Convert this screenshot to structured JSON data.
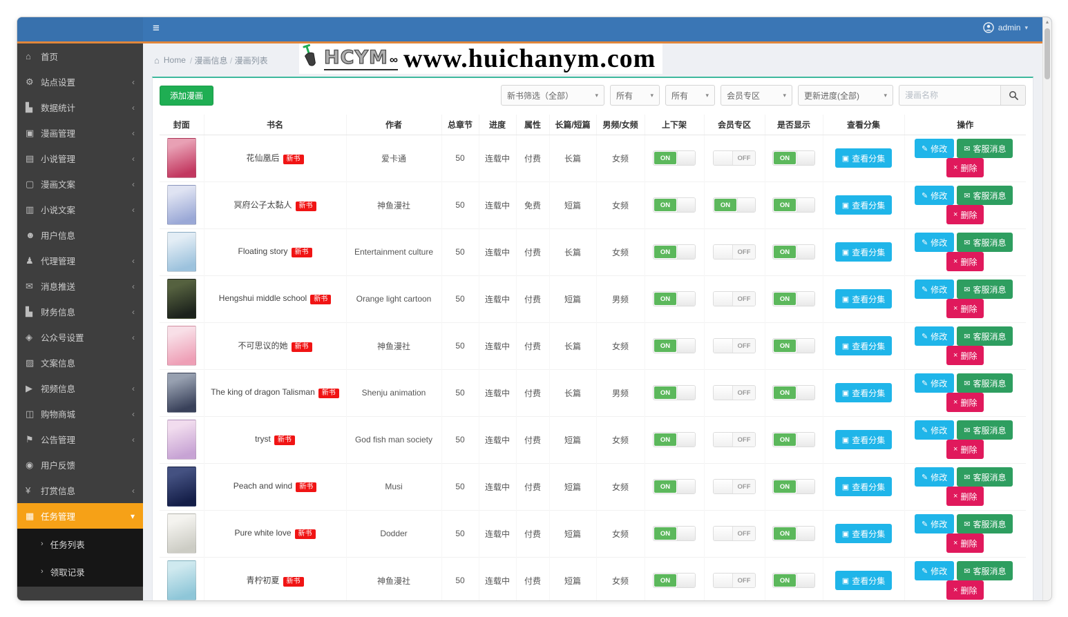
{
  "header": {
    "hamburger": "≡",
    "user_label": "admin",
    "caret": "▾"
  },
  "watermark": {
    "brand": "HCYM",
    "dots": "∞",
    "url": "www.huichanym.com"
  },
  "breadcrumb": {
    "home_icon": "⌂",
    "home": "Home",
    "separator": "/",
    "path": [
      "漫画信息",
      "漫画列表"
    ]
  },
  "sidebar": {
    "items": [
      {
        "label": "首页",
        "icon": "home-icon",
        "glyph": "⌂",
        "expandable": false
      },
      {
        "label": "站点设置",
        "icon": "site-settings-icon",
        "glyph": "⚙",
        "expandable": true
      },
      {
        "label": "数据统计",
        "icon": "statistics-icon",
        "glyph": "▙",
        "expandable": true
      },
      {
        "label": "漫画管理",
        "icon": "comic-manage-icon",
        "glyph": "▣",
        "expandable": true
      },
      {
        "label": "小说管理",
        "icon": "novel-manage-icon",
        "glyph": "▤",
        "expandable": true
      },
      {
        "label": "漫画文案",
        "icon": "comic-copy-icon",
        "glyph": "▢",
        "expandable": true
      },
      {
        "label": "小说文案",
        "icon": "novel-copy-icon",
        "glyph": "▥",
        "expandable": true
      },
      {
        "label": "用户信息",
        "icon": "user-info-icon",
        "glyph": "☻",
        "expandable": false
      },
      {
        "label": "代理管理",
        "icon": "agent-manage-icon",
        "glyph": "♟",
        "expandable": true
      },
      {
        "label": "消息推送",
        "icon": "message-push-icon",
        "glyph": "✉",
        "expandable": true
      },
      {
        "label": "财务信息",
        "icon": "finance-info-icon",
        "glyph": "▙",
        "expandable": true
      },
      {
        "label": "公众号设置",
        "icon": "official-account-icon",
        "glyph": "◈",
        "expandable": true
      },
      {
        "label": "文案信息",
        "icon": "copy-info-icon",
        "glyph": "▨",
        "expandable": false
      },
      {
        "label": "视频信息",
        "icon": "video-info-icon",
        "glyph": "▶",
        "expandable": true
      },
      {
        "label": "购物商城",
        "icon": "shop-mall-icon",
        "glyph": "◫",
        "expandable": true
      },
      {
        "label": "公告管理",
        "icon": "notice-manage-icon",
        "glyph": "⚑",
        "expandable": true
      },
      {
        "label": "用户反馈",
        "icon": "user-feedback-icon",
        "glyph": "◉",
        "expandable": false
      },
      {
        "label": "打赏信息",
        "icon": "reward-info-icon",
        "glyph": "¥",
        "expandable": true
      },
      {
        "label": "任务管理",
        "icon": "task-manage-icon",
        "glyph": "▦",
        "expandable": true,
        "active": true,
        "expanded": true,
        "children": [
          {
            "label": "任务列表"
          },
          {
            "label": "领取记录"
          }
        ]
      }
    ],
    "collapse_arrow": "‹",
    "expand_arrow": "▾",
    "sub_arrow": "›"
  },
  "toolbar": {
    "add_button": "添加漫画",
    "filters": [
      {
        "label": "新书筛选（全部）"
      },
      {
        "label": "所有"
      },
      {
        "label": "所有"
      },
      {
        "label": "会员专区"
      },
      {
        "label": "更新进度(全部)"
      }
    ],
    "filter_caret": "▾",
    "search_placeholder": "漫画名称"
  },
  "table": {
    "headers": [
      "封面",
      "书名",
      "作者",
      "总章节",
      "进度",
      "属性",
      "长篇/短篇",
      "男频/女频",
      "上下架",
      "会员专区",
      "是否显示",
      "查看分集",
      "操作"
    ],
    "badge_new": "新书",
    "toggle_on": "ON",
    "toggle_off": "OFF",
    "episodes_button": "查看分集",
    "actions": {
      "edit": "修改",
      "message": "客服消息",
      "delete": "删除"
    },
    "rows": [
      {
        "title": "花仙凰后",
        "new": true,
        "author": "爱卡通",
        "chapters": "50",
        "progress": "连载中",
        "attribute": "付费",
        "length": "长篇",
        "audience": "女频",
        "on_sale": "on",
        "vip": "off",
        "visible": "on",
        "cover_colors": [
          "#e8a0b4",
          "#c2375f"
        ]
      },
      {
        "title": "冥府公子太黏人",
        "new": true,
        "author": "神鱼漫社",
        "chapters": "50",
        "progress": "连载中",
        "attribute": "免费",
        "length": "短篇",
        "audience": "女频",
        "on_sale": "on",
        "vip": "on",
        "visible": "on",
        "cover_colors": [
          "#dfe3f2",
          "#9aa8d6"
        ]
      },
      {
        "title": "Floating story",
        "new": true,
        "author": "Entertainment culture",
        "chapters": "50",
        "progress": "连载中",
        "attribute": "付费",
        "length": "长篇",
        "audience": "女频",
        "on_sale": "on",
        "vip": "off",
        "visible": "on",
        "cover_colors": [
          "#e3edf5",
          "#9cc2dd"
        ]
      },
      {
        "title": "Hengshui middle school",
        "new": true,
        "author": "Orange light cartoon",
        "chapters": "50",
        "progress": "连载中",
        "attribute": "付费",
        "length": "短篇",
        "audience": "男频",
        "on_sale": "on",
        "vip": "off",
        "visible": "on",
        "cover_colors": [
          "#55613f",
          "#1c221c"
        ]
      },
      {
        "title": "不可思议的她",
        "new": true,
        "author": "神鱼漫社",
        "chapters": "50",
        "progress": "连载中",
        "attribute": "付费",
        "length": "长篇",
        "audience": "女频",
        "on_sale": "on",
        "vip": "off",
        "visible": "on",
        "cover_colors": [
          "#f8dfe7",
          "#ee9fb6"
        ]
      },
      {
        "title": "The king of dragon Talisman",
        "new": true,
        "author": "Shenju animation",
        "chapters": "50",
        "progress": "连载中",
        "attribute": "付费",
        "length": "长篇",
        "audience": "男频",
        "on_sale": "on",
        "vip": "off",
        "visible": "on",
        "cover_colors": [
          "#97a0b0",
          "#39415a"
        ]
      },
      {
        "title": "tryst",
        "new": true,
        "author": "God fish man society",
        "chapters": "50",
        "progress": "连载中",
        "attribute": "付费",
        "length": "短篇",
        "audience": "女频",
        "on_sale": "on",
        "vip": "off",
        "visible": "on",
        "cover_colors": [
          "#f1dcee",
          "#c7a3d4"
        ]
      },
      {
        "title": "Peach and wind",
        "new": true,
        "author": "Musi",
        "chapters": "50",
        "progress": "连载中",
        "attribute": "付费",
        "length": "短篇",
        "audience": "女频",
        "on_sale": "on",
        "vip": "off",
        "visible": "on",
        "cover_colors": [
          "#445181",
          "#141e48"
        ]
      },
      {
        "title": "Pure white love",
        "new": true,
        "author": "Dodder",
        "chapters": "50",
        "progress": "连载中",
        "attribute": "付费",
        "length": "短篇",
        "audience": "女频",
        "on_sale": "on",
        "vip": "off",
        "visible": "on",
        "cover_colors": [
          "#f4f3ef",
          "#ccccc4"
        ]
      },
      {
        "title": "青柠初夏",
        "new": true,
        "author": "神鱼漫社",
        "chapters": "50",
        "progress": "连载中",
        "attribute": "付费",
        "length": "短篇",
        "audience": "女频",
        "on_sale": "on",
        "vip": "off",
        "visible": "on",
        "cover_colors": [
          "#cfe9ef",
          "#8ec6d8"
        ]
      }
    ]
  },
  "colors": {
    "header_blue": "#3a76b5",
    "header_accent_orange": "#e0863b",
    "sidebar_bg": "#3e3e3e",
    "sidebar_active_orange": "#f6a117",
    "submenu_bg": "#161616",
    "add_button_green": "#1fae53",
    "toggle_green": "#5cb85c",
    "button_cyan": "#1fb5e9",
    "button_green": "#2e9e60",
    "button_pink": "#e0195c",
    "badge_red": "#f01414",
    "panel_top_border": "#3db89c"
  }
}
